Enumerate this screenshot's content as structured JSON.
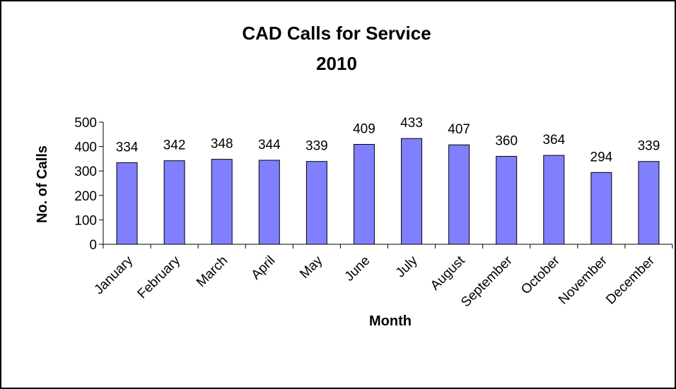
{
  "chart_data": {
    "type": "bar",
    "title": "CAD Calls for Service",
    "subtitle": "2010",
    "xlabel": "Month",
    "ylabel": "No. of Calls",
    "ylim": [
      0,
      500
    ],
    "yticks": [
      0,
      100,
      200,
      300,
      400,
      500
    ],
    "grid": false,
    "legend": "none",
    "bar_color": "#8080FF",
    "categories": [
      "January",
      "February",
      "March",
      "April",
      "May",
      "June",
      "July",
      "August",
      "September",
      "October",
      "November",
      "December"
    ],
    "values": [
      334,
      342,
      348,
      344,
      339,
      409,
      433,
      407,
      360,
      364,
      294,
      339
    ]
  }
}
